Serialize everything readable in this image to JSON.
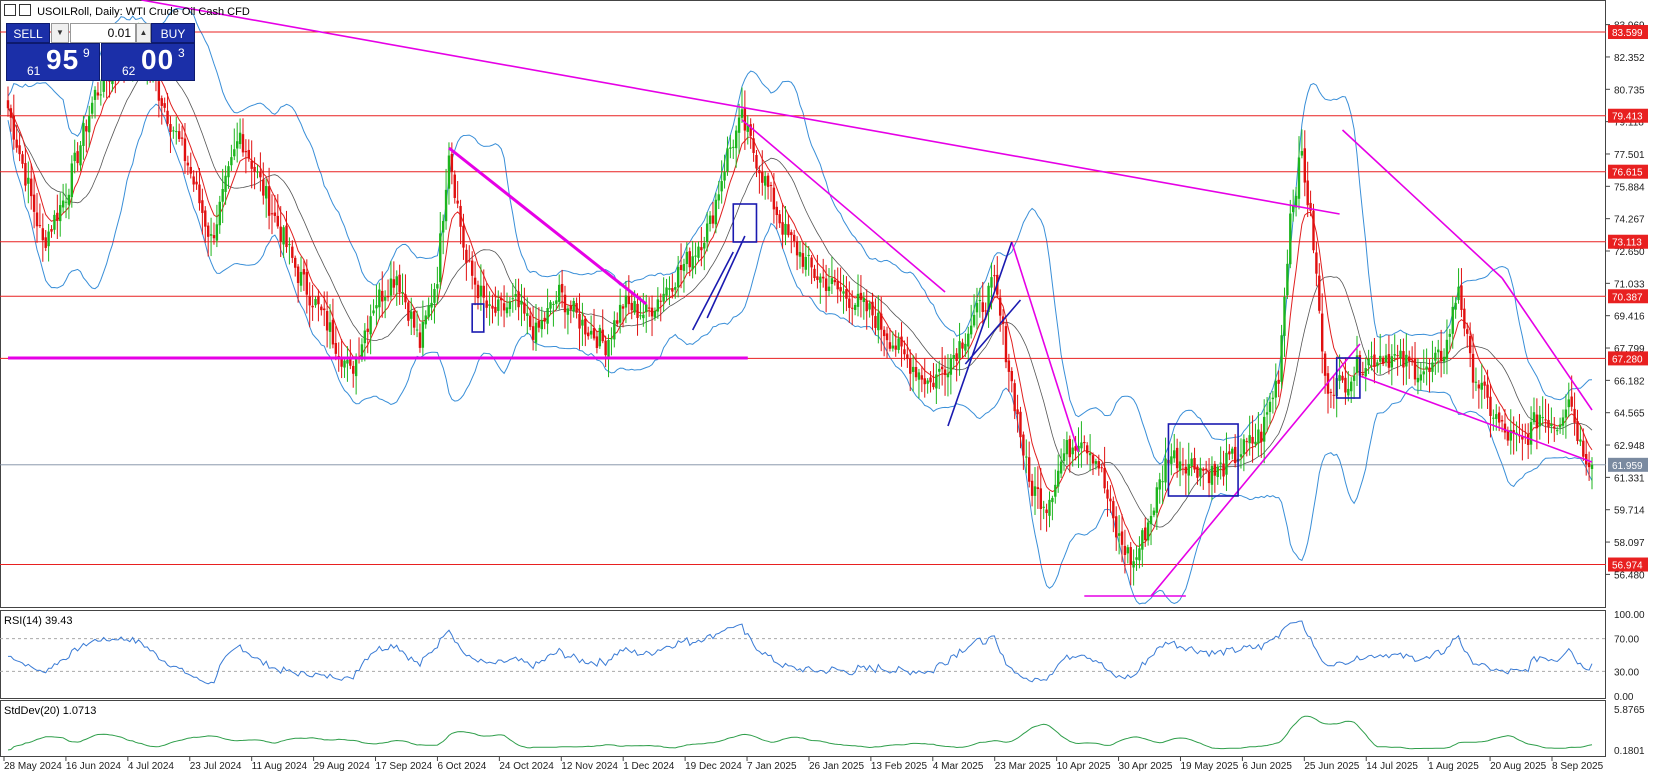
{
  "header": {
    "title": "USOILRoll, Daily:  WTI Crude Oil Cash CFD"
  },
  "trade_panel": {
    "sell_label": "SELL",
    "buy_label": "BUY",
    "volume": "0.01",
    "bid": {
      "prefix": "61",
      "big": "95",
      "sup": "9"
    },
    "ask": {
      "prefix": "62",
      "big": "00",
      "sup": "3"
    }
  },
  "indicators": {
    "rsi_label": "RSI(14) 39.43",
    "std_label": "StdDev(20) 1.0713"
  },
  "colors": {
    "bull": "#1db51d",
    "bear": "#e01010",
    "level": "#e82020",
    "trend": "#e600e6",
    "channel": "#1a1ab0",
    "bands": "#3a8fd8",
    "ma": "#e02020",
    "indicator": "#3a7bd5",
    "std": "#2e9e4a"
  },
  "chart_data": {
    "type": "candlestick",
    "title": "USOILRoll, Daily:  WTI Crude Oil Cash CFD",
    "ylim": [
      55.0,
      84.9
    ],
    "price_ticks": [
      "83.969",
      "82.352",
      "80.735",
      "79.118",
      "77.501",
      "75.884",
      "74.267",
      "72.650",
      "71.033",
      "69.416",
      "67.799",
      "66.182",
      "64.565",
      "62.948",
      "61.331",
      "59.714",
      "58.097",
      "56.480"
    ],
    "levels": [
      "83.599",
      "79.413",
      "76.615",
      "73.113",
      "70.387",
      "67.280",
      "56.974"
    ],
    "current_price": "61.959",
    "date_labels": [
      "28 May 2024",
      "16 Jun 2024",
      "4 Jul 2024",
      "23 Jul 2024",
      "11 Aug 2024",
      "29 Aug 2024",
      "17 Sep 2024",
      "6 Oct 2024",
      "24 Oct 2024",
      "12 Nov 2024",
      "1 Dec 2024",
      "19 Dec 2024",
      "7 Jan 2025",
      "26 Jan 2025",
      "13 Feb 2025",
      "4 Mar 2025",
      "23 Mar 2025",
      "10 Apr 2025",
      "30 Apr 2025",
      "19 May 2025",
      "6 Jun 2025",
      "25 Jun 2025",
      "14 Jul 2025",
      "1 Aug 2025",
      "20 Aug 2025",
      "8 Sep 2025"
    ],
    "anchors": [
      [
        0,
        79.8
      ],
      [
        5,
        77.0
      ],
      [
        12,
        73.0
      ],
      [
        20,
        75.5
      ],
      [
        30,
        80.5
      ],
      [
        38,
        82.0
      ],
      [
        46,
        82.8
      ],
      [
        55,
        79.5
      ],
      [
        62,
        77.0
      ],
      [
        70,
        73.2
      ],
      [
        80,
        78.5
      ],
      [
        90,
        75.0
      ],
      [
        100,
        71.5
      ],
      [
        110,
        69.0
      ],
      [
        118,
        66.5
      ],
      [
        126,
        70.0
      ],
      [
        134,
        71.5
      ],
      [
        142,
        68.0
      ],
      [
        148,
        71.5
      ],
      [
        152,
        77.8
      ],
      [
        158,
        72.0
      ],
      [
        166,
        69.5
      ],
      [
        175,
        70.0
      ],
      [
        182,
        68.5
      ],
      [
        190,
        70.5
      ],
      [
        198,
        69.0
      ],
      [
        206,
        68.0
      ],
      [
        212,
        70.0
      ],
      [
        220,
        69.5
      ],
      [
        228,
        71.0
      ],
      [
        236,
        72.5
      ],
      [
        242,
        74.0
      ],
      [
        248,
        77.5
      ],
      [
        253,
        79.2
      ],
      [
        260,
        76.5
      ],
      [
        268,
        73.5
      ],
      [
        278,
        71.5
      ],
      [
        288,
        70.5
      ],
      [
        298,
        69.5
      ],
      [
        308,
        67.5
      ],
      [
        318,
        66.0
      ],
      [
        326,
        67.5
      ],
      [
        334,
        69.5
      ],
      [
        340,
        71.0
      ],
      [
        346,
        66.0
      ],
      [
        352,
        61.0
      ],
      [
        358,
        60.0
      ],
      [
        364,
        62.5
      ],
      [
        370,
        63.5
      ],
      [
        376,
        62.0
      ],
      [
        382,
        58.5
      ],
      [
        388,
        57.0
      ],
      [
        394,
        59.5
      ],
      [
        400,
        62.5
      ],
      [
        408,
        62.0
      ],
      [
        416,
        61.5
      ],
      [
        424,
        62.5
      ],
      [
        432,
        63.5
      ],
      [
        438,
        66.5
      ],
      [
        442,
        74.5
      ],
      [
        446,
        77.5
      ],
      [
        450,
        73.0
      ],
      [
        454,
        66.0
      ],
      [
        460,
        66.0
      ],
      [
        466,
        67.0
      ],
      [
        474,
        67.5
      ],
      [
        482,
        67.0
      ],
      [
        490,
        66.5
      ],
      [
        496,
        68.0
      ],
      [
        500,
        71.0
      ],
      [
        504,
        67.0
      ],
      [
        510,
        65.0
      ],
      [
        516,
        63.5
      ],
      [
        522,
        63.0
      ],
      [
        528,
        64.5
      ],
      [
        534,
        64.0
      ],
      [
        538,
        65.5
      ],
      [
        542,
        63.0
      ],
      [
        546,
        62.0
      ]
    ],
    "rsi": {
      "ylim": [
        0,
        100
      ],
      "levels": [
        30,
        70
      ],
      "ticks": [
        "100.00",
        "70.00",
        "30.00",
        "0.00"
      ],
      "last": 39.43
    },
    "stddev": {
      "ticks": [
        "5.8765",
        "0.1801"
      ],
      "last": 1.0713
    }
  }
}
